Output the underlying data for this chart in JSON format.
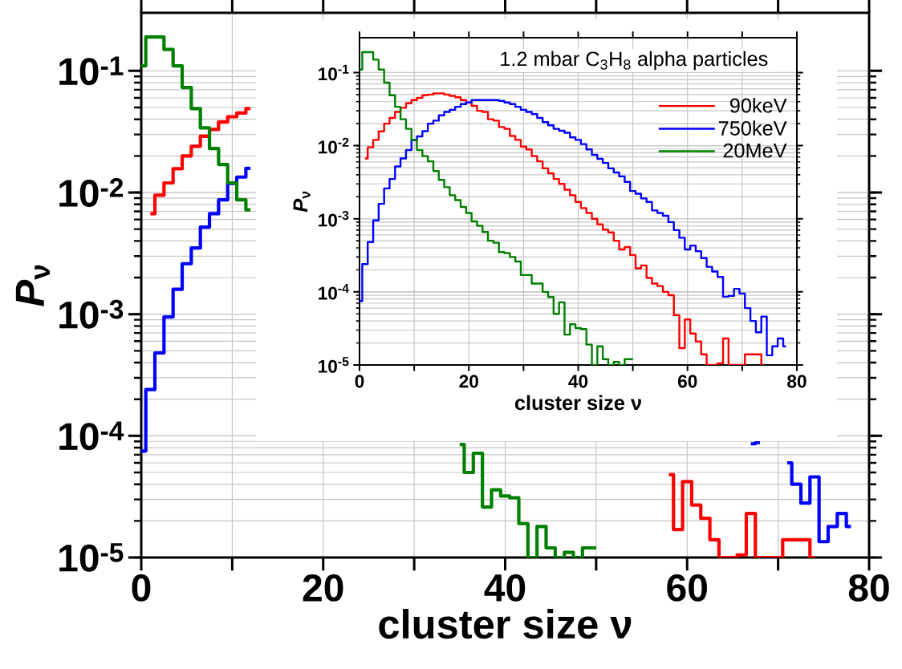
{
  "chart_data": [
    {
      "type": "step",
      "xlabel": "cluster size ν",
      "ylabel": "*P*$_{ν}$",
      "log": true,
      "grid": true,
      "xlim": [
        0,
        80
      ],
      "ylim": [
        1e-05,
        0.3
      ],
      "xticks": [
        0,
        {
          "value": 10,
          "label": null
        },
        20,
        {
          "value": 30,
          "label": null
        },
        40,
        {
          "value": 50,
          "label": null
        },
        60,
        {
          "value": 70,
          "label": null
        },
        80
      ],
      "yticks": [
        {
          "value": 1e-05,
          "label": "10$^{-5}$"
        },
        {
          "value": 0.0001,
          "label": "10$^{-4}$"
        },
        {
          "value": 0.001,
          "label": "10$^{-3}$"
        },
        {
          "value": 0.01,
          "label": "10$^{-2}$"
        },
        {
          "value": 0.1,
          "label": "10$^{-1}$"
        }
      ],
      "x": [
        0,
        1,
        2,
        3,
        4,
        5,
        6,
        7,
        8,
        9,
        10,
        11,
        12,
        13,
        14,
        15,
        16,
        17,
        18,
        19,
        20,
        21,
        22,
        23,
        24,
        25,
        26,
        27,
        28,
        29,
        30,
        31,
        32,
        33,
        34,
        35,
        36,
        37,
        38,
        39,
        40,
        41,
        42,
        43,
        44,
        45,
        46,
        47,
        48,
        49,
        50,
        51,
        52,
        53,
        54,
        55,
        56,
        57,
        58,
        59,
        60,
        61,
        62,
        63,
        64,
        65,
        66,
        67,
        68,
        69,
        70,
        71,
        72,
        73,
        74,
        75,
        76,
        77,
        78
      ],
      "series": [
        {
          "color": "#ff0000",
          "values": [
            null,
            0.0067,
            0.0095,
            0.012,
            0.0157,
            0.02,
            0.024,
            0.029,
            0.033,
            0.038,
            0.042,
            0.045,
            0.049,
            null,
            null,
            null,
            null,
            null,
            null,
            null,
            null,
            null,
            null,
            null,
            null,
            null,
            null,
            null,
            null,
            null,
            null,
            null,
            null,
            null,
            null,
            null,
            null,
            null,
            null,
            null,
            null,
            null,
            null,
            null,
            null,
            null,
            null,
            null,
            null,
            null,
            null,
            null,
            null,
            null,
            null,
            null,
            null,
            null,
            4.8e-05,
            1.7e-05,
            4.2e-05,
            2.7e-05,
            2.1e-05,
            1.4e-05,
            1e-05,
            1e-05,
            1.05e-05,
            2.3e-05,
            1e-05,
            1e-05,
            1e-05,
            1.4e-05,
            1.4e-05,
            1.4e-05,
            1e-05,
            null,
            null,
            null,
            null
          ]
        },
        {
          "color": "#0000ff",
          "values": [
            7.5e-05,
            0.00024,
            0.00048,
            0.00095,
            0.0016,
            0.0026,
            0.0035,
            0.0052,
            0.0067,
            0.0087,
            0.0119,
            0.0134,
            0.0158,
            null,
            null,
            null,
            null,
            null,
            null,
            null,
            null,
            null,
            null,
            null,
            null,
            null,
            null,
            null,
            null,
            null,
            null,
            null,
            null,
            null,
            null,
            null,
            null,
            null,
            null,
            null,
            null,
            null,
            null,
            null,
            null,
            null,
            null,
            null,
            null,
            null,
            null,
            null,
            null,
            null,
            null,
            null,
            null,
            null,
            null,
            null,
            null,
            null,
            null,
            null,
            null,
            null,
            null,
            8.6e-05,
            8.8e-05,
            null,
            null,
            6e-05,
            4e-05,
            2.8e-05,
            4.6e-05,
            1.35e-05,
            1.8e-05,
            2.3e-05,
            1.8e-05
          ]
        },
        {
          "color": "#008000",
          "values": [
            0.11,
            0.19,
            0.19,
            0.15,
            0.11,
            0.073,
            0.049,
            0.034,
            0.023,
            0.017,
            0.012,
            0.0087,
            0.0072,
            null,
            null,
            null,
            null,
            null,
            null,
            null,
            null,
            null,
            null,
            null,
            null,
            null,
            null,
            null,
            null,
            null,
            null,
            null,
            null,
            null,
            null,
            8.5e-05,
            5e-05,
            7.2e-05,
            2.6e-05,
            3.6e-05,
            3.2e-05,
            3.1e-05,
            1.9e-05,
            1e-05,
            1.8e-05,
            1.2e-05,
            1e-05,
            1.1e-05,
            1e-05,
            1.2e-05,
            1.2e-05,
            null,
            null,
            null,
            null,
            null,
            null,
            null,
            null,
            null,
            null,
            null,
            null,
            null,
            null,
            null,
            null,
            null,
            null,
            null,
            null,
            null,
            null,
            null,
            null,
            null,
            null,
            null,
            null
          ]
        }
      ]
    },
    {
      "type": "step",
      "xlabel": "cluster size ν",
      "ylabel": "*P*$_{ν}$",
      "log": true,
      "grid": true,
      "legend": "top right",
      "annotations": [
        "1.2 mbar C$_{3}$H$_{8}$ alpha particles"
      ],
      "xlim": [
        0,
        80
      ],
      "ylim": [
        1e-05,
        0.3
      ],
      "xticks": [
        0,
        {
          "value": 10,
          "label": null
        },
        20,
        {
          "value": 30,
          "label": null
        },
        40,
        {
          "value": 50,
          "label": null
        },
        60,
        {
          "value": 70,
          "label": null
        },
        80
      ],
      "yticks": [
        {
          "value": 1e-05,
          "label": "10$^{-5}$"
        },
        {
          "value": 0.0001,
          "label": "10$^{-4}$"
        },
        {
          "value": 0.001,
          "label": "10$^{-3}$"
        },
        {
          "value": 0.01,
          "label": "10$^{-2}$"
        },
        {
          "value": 0.1,
          "label": "10$^{-1}$"
        }
      ],
      "x": [
        0,
        1,
        2,
        3,
        4,
        5,
        6,
        7,
        8,
        9,
        10,
        11,
        12,
        13,
        14,
        15,
        16,
        17,
        18,
        19,
        20,
        21,
        22,
        23,
        24,
        25,
        26,
        27,
        28,
        29,
        30,
        31,
        32,
        33,
        34,
        35,
        36,
        37,
        38,
        39,
        40,
        41,
        42,
        43,
        44,
        45,
        46,
        47,
        48,
        49,
        50,
        51,
        52,
        53,
        54,
        55,
        56,
        57,
        58,
        59,
        60,
        61,
        62,
        63,
        64,
        65,
        66,
        67,
        68,
        69,
        70,
        71,
        72,
        73,
        74,
        75,
        76,
        77,
        78
      ],
      "series": [
        {
          "name": "90keV",
          "color": "#ff0000",
          "values": [
            null,
            0.0067,
            0.0095,
            0.012,
            0.0157,
            0.02,
            0.024,
            0.029,
            0.033,
            0.038,
            0.042,
            0.045,
            0.049,
            0.05,
            0.052,
            0.052,
            0.05,
            0.048,
            0.046,
            0.042,
            0.039,
            0.035,
            0.03,
            0.029,
            0.023,
            0.022,
            0.018,
            0.017,
            0.0136,
            0.012,
            0.0097,
            0.0089,
            0.0072,
            0.0061,
            0.0049,
            0.0042,
            0.0035,
            0.003,
            0.0025,
            0.0021,
            0.0017,
            0.0014,
            0.0012,
            0.001,
            0.00084,
            0.00071,
            0.00065,
            0.0005,
            0.00038,
            0.00041,
            0.00032,
            0.00021,
            0.00023,
            0.000155,
            0.00013,
            0.00012,
            0.0001,
            9e-05,
            4.8e-05,
            1.7e-05,
            4.2e-05,
            2.7e-05,
            2.1e-05,
            1.4e-05,
            1e-05,
            1e-05,
            1.05e-05,
            2.3e-05,
            1e-05,
            1e-05,
            1e-05,
            1.4e-05,
            1.4e-05,
            1.4e-05,
            1e-05,
            null,
            null,
            null,
            null
          ]
        },
        {
          "name": "750keV",
          "color": "#0000ff",
          "values": [
            7.5e-05,
            0.00024,
            0.00048,
            0.00095,
            0.0016,
            0.0026,
            0.0035,
            0.0052,
            0.0067,
            0.0087,
            0.0119,
            0.0134,
            0.0158,
            0.02,
            0.022,
            0.026,
            0.029,
            0.031,
            0.034,
            0.037,
            0.039,
            0.042,
            0.042,
            0.042,
            0.042,
            0.042,
            0.041,
            0.039,
            0.037,
            0.034,
            0.031,
            0.029,
            0.027,
            0.024,
            0.021,
            0.019,
            0.017,
            0.016,
            0.015,
            0.013,
            0.012,
            0.0105,
            0.0089,
            0.0075,
            0.0066,
            0.0058,
            0.0049,
            0.0043,
            0.0038,
            0.0032,
            0.0024,
            0.0022,
            0.0019,
            0.0017,
            0.0013,
            0.0012,
            0.0011,
            0.0009,
            0.0007,
            0.00055,
            0.00038,
            0.00043,
            0.00036,
            0.00029,
            0.00022,
            0.00019,
            0.00016,
            8.6e-05,
            8.8e-05,
            0.00011,
            9.5e-05,
            6e-05,
            4e-05,
            2.8e-05,
            4.6e-05,
            1.35e-05,
            1.8e-05,
            2.3e-05,
            1.8e-05
          ]
        },
        {
          "name": "20MeV",
          "color": "#008000",
          "values": [
            0.11,
            0.19,
            0.19,
            0.15,
            0.11,
            0.073,
            0.049,
            0.034,
            0.023,
            0.017,
            0.012,
            0.0087,
            0.0072,
            0.0061,
            0.0045,
            0.0034,
            0.0027,
            0.0021,
            0.0018,
            0.00145,
            0.0012,
            0.00092,
            0.0008,
            0.00066,
            0.0005,
            0.00047,
            0.00035,
            0.00034,
            0.0003,
            0.00026,
            0.00017,
            0.00017,
            0.00013,
            0.00013,
            0.0001,
            8.5e-05,
            5e-05,
            7.2e-05,
            2.6e-05,
            3.6e-05,
            3.2e-05,
            3.1e-05,
            1.9e-05,
            1e-05,
            1.8e-05,
            1.2e-05,
            1e-05,
            1.1e-05,
            1e-05,
            1.2e-05,
            1.2e-05,
            null,
            null,
            null,
            null,
            null,
            null,
            null,
            null,
            null,
            null,
            null,
            null,
            null,
            null,
            null,
            null,
            null,
            null,
            null,
            null,
            null,
            null,
            null,
            null,
            null,
            null,
            null,
            null
          ]
        }
      ]
    }
  ]
}
